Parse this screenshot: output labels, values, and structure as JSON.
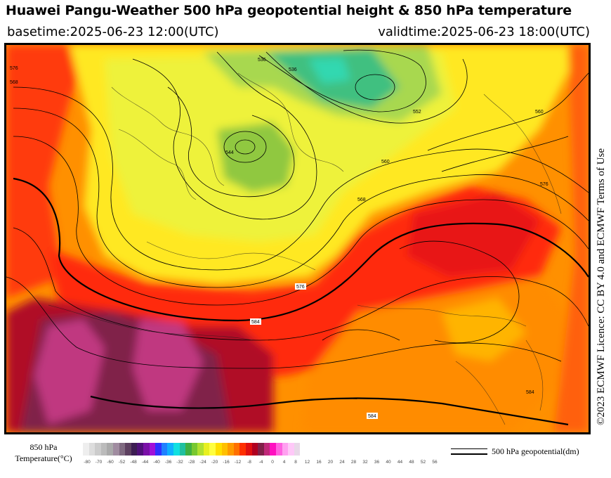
{
  "title": "Huawei Pangu-Weather 500 hPa geopotential height & 850 hPa temperature",
  "basetime": "basetime:2025-06-23 12:00(UTC)",
  "validtime": "validtime:2025-06-23 18:00(UTC)",
  "licence": "©2023 ECMWF Licence: CC BY 4.0 and ECMWF Terms of Use",
  "legend": {
    "label_line1": "850 hPa",
    "label_line2": "Temperature(°C)",
    "ticks": [
      "-80",
      "-70",
      "-60",
      "-52",
      "-48",
      "-44",
      "-40",
      "-36",
      "-32",
      "-28",
      "-24",
      "-20",
      "-16",
      "-12",
      "-8",
      "-4",
      "0",
      "4",
      "8",
      "12",
      "16",
      "20",
      "24",
      "28",
      "32",
      "36",
      "40",
      "44",
      "48",
      "52",
      "56"
    ],
    "colors": [
      "#eeeeee",
      "#dddddd",
      "#cccccc",
      "#bbbbbb",
      "#aaaaaa",
      "#a08ca0",
      "#7f6a80",
      "#5d4060",
      "#3c1d52",
      "#50107a",
      "#7a10a8",
      "#a010d8",
      "#3030ff",
      "#2080ff",
      "#10b0ff",
      "#10e0e0",
      "#20c0a0",
      "#40b040",
      "#78c830",
      "#b0e030",
      "#e8f020",
      "#ffff40",
      "#ffe000",
      "#ffc000",
      "#ff9a00",
      "#ff7000",
      "#ff3000",
      "#e01010",
      "#b00020",
      "#802048",
      "#c02878",
      "#ff10c0",
      "#ff60e0",
      "#ffa0f0",
      "#ffc8f8",
      "#e8d8e8"
    ],
    "contour_label": "500 hPa geopotential(dm)"
  },
  "map": {
    "contour_labels": [
      "584",
      "584",
      "584",
      "576",
      "576",
      "568",
      "560",
      "552",
      "544",
      "536",
      "536",
      "576",
      "568",
      "560"
    ]
  }
}
